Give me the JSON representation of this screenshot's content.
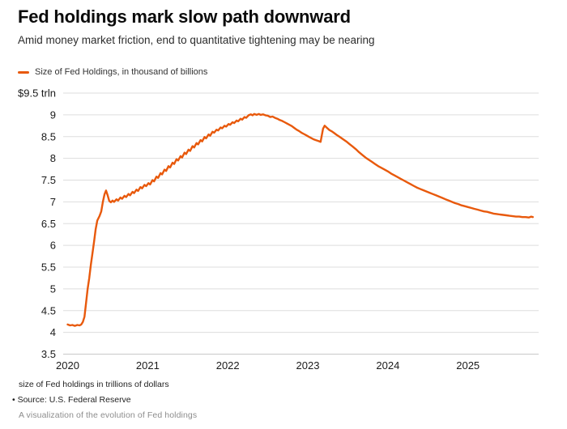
{
  "header": {
    "title": "Fed holdings mark slow path downward",
    "subtitle": "Amid money market friction, end to quantitative tightening may be nearing"
  },
  "legend": {
    "label": "Size of Fed Holdings, in thousand of billions",
    "color": "#e8590c"
  },
  "footer": {
    "note": "size of Fed holdings in trillions of dollars",
    "source": "• Source: U.S. Federal Reserve",
    "caption": "A visualization of the evolution of Fed holdings"
  },
  "colors": {
    "line": "#e8590c",
    "grid": "#dddddd",
    "grid_bottom": "#c9c9c9",
    "axis_text": "#1a1a1a"
  },
  "chart_data": {
    "type": "line",
    "title": "Fed holdings mark slow path downward",
    "subtitle": "Amid money market friction, end to quantitative tightening may be nearing",
    "xlabel": "",
    "ylabel": "$ trillions",
    "x_unit": "years since 2020-01-01",
    "xlim": [
      0,
      5.88
    ],
    "ylim": [
      3.5,
      9.5
    ],
    "grid": "horizontal",
    "legend_position": "top-left",
    "y_ticks": [
      {
        "v": 9.5,
        "label": "$9.5 trln"
      },
      {
        "v": 9.0,
        "label": "9"
      },
      {
        "v": 8.5,
        "label": "8.5"
      },
      {
        "v": 8.0,
        "label": "8"
      },
      {
        "v": 7.5,
        "label": "7.5"
      },
      {
        "v": 7.0,
        "label": "7"
      },
      {
        "v": 6.5,
        "label": "6.5"
      },
      {
        "v": 6.0,
        "label": "6"
      },
      {
        "v": 5.5,
        "label": "5.5"
      },
      {
        "v": 5.0,
        "label": "5"
      },
      {
        "v": 4.5,
        "label": "4.5"
      },
      {
        "v": 4.0,
        "label": "4"
      },
      {
        "v": 3.5,
        "label": "3.5"
      }
    ],
    "x_ticks": [
      {
        "t": 0,
        "label": "2020"
      },
      {
        "t": 1,
        "label": "2021"
      },
      {
        "t": 2,
        "label": "2022"
      },
      {
        "t": 3,
        "label": "2023"
      },
      {
        "t": 4,
        "label": "2024"
      },
      {
        "t": 5,
        "label": "2025"
      }
    ],
    "series": [
      {
        "name": "Size of Fed Holdings, in thousand of billions",
        "color": "#e8590c",
        "points": [
          [
            0.0,
            4.18
          ],
          [
            0.03,
            4.16
          ],
          [
            0.06,
            4.17
          ],
          [
            0.09,
            4.15
          ],
          [
            0.12,
            4.17
          ],
          [
            0.15,
            4.16
          ],
          [
            0.17,
            4.18
          ],
          [
            0.19,
            4.24
          ],
          [
            0.21,
            4.36
          ],
          [
            0.23,
            4.67
          ],
          [
            0.25,
            5.0
          ],
          [
            0.27,
            5.25
          ],
          [
            0.29,
            5.56
          ],
          [
            0.31,
            5.81
          ],
          [
            0.33,
            6.08
          ],
          [
            0.35,
            6.37
          ],
          [
            0.37,
            6.57
          ],
          [
            0.4,
            6.68
          ],
          [
            0.42,
            6.78
          ],
          [
            0.44,
            7.0
          ],
          [
            0.46,
            7.17
          ],
          [
            0.48,
            7.26
          ],
          [
            0.5,
            7.15
          ],
          [
            0.52,
            7.02
          ],
          [
            0.54,
            6.99
          ],
          [
            0.56,
            7.03
          ],
          [
            0.58,
            7.0
          ],
          [
            0.61,
            7.06
          ],
          [
            0.63,
            7.03
          ],
          [
            0.66,
            7.1
          ],
          [
            0.68,
            7.07
          ],
          [
            0.71,
            7.14
          ],
          [
            0.73,
            7.11
          ],
          [
            0.76,
            7.18
          ],
          [
            0.78,
            7.15
          ],
          [
            0.81,
            7.23
          ],
          [
            0.83,
            7.2
          ],
          [
            0.86,
            7.28
          ],
          [
            0.88,
            7.25
          ],
          [
            0.91,
            7.34
          ],
          [
            0.93,
            7.31
          ],
          [
            0.96,
            7.39
          ],
          [
            0.98,
            7.36
          ],
          [
            1.01,
            7.43
          ],
          [
            1.03,
            7.4
          ],
          [
            1.06,
            7.5
          ],
          [
            1.08,
            7.47
          ],
          [
            1.11,
            7.58
          ],
          [
            1.13,
            7.55
          ],
          [
            1.16,
            7.66
          ],
          [
            1.18,
            7.63
          ],
          [
            1.21,
            7.74
          ],
          [
            1.23,
            7.71
          ],
          [
            1.26,
            7.82
          ],
          [
            1.28,
            7.79
          ],
          [
            1.31,
            7.9
          ],
          [
            1.33,
            7.87
          ],
          [
            1.36,
            7.98
          ],
          [
            1.38,
            7.95
          ],
          [
            1.41,
            8.05
          ],
          [
            1.43,
            8.02
          ],
          [
            1.46,
            8.13
          ],
          [
            1.48,
            8.1
          ],
          [
            1.51,
            8.2
          ],
          [
            1.53,
            8.17
          ],
          [
            1.56,
            8.28
          ],
          [
            1.58,
            8.25
          ],
          [
            1.61,
            8.35
          ],
          [
            1.63,
            8.32
          ],
          [
            1.66,
            8.42
          ],
          [
            1.68,
            8.39
          ],
          [
            1.71,
            8.49
          ],
          [
            1.73,
            8.46
          ],
          [
            1.76,
            8.55
          ],
          [
            1.78,
            8.52
          ],
          [
            1.81,
            8.61
          ],
          [
            1.83,
            8.59
          ],
          [
            1.86,
            8.66
          ],
          [
            1.88,
            8.64
          ],
          [
            1.91,
            8.71
          ],
          [
            1.93,
            8.69
          ],
          [
            1.96,
            8.75
          ],
          [
            1.98,
            8.73
          ],
          [
            2.01,
            8.79
          ],
          [
            2.03,
            8.77
          ],
          [
            2.06,
            8.83
          ],
          [
            2.08,
            8.81
          ],
          [
            2.11,
            8.87
          ],
          [
            2.13,
            8.85
          ],
          [
            2.16,
            8.91
          ],
          [
            2.18,
            8.89
          ],
          [
            2.21,
            8.95
          ],
          [
            2.23,
            8.93
          ],
          [
            2.26,
            8.99
          ],
          [
            2.29,
            9.01
          ],
          [
            2.31,
            8.99
          ],
          [
            2.33,
            9.02
          ],
          [
            2.36,
            9.0
          ],
          [
            2.39,
            9.02
          ],
          [
            2.41,
            9.0
          ],
          [
            2.44,
            9.01
          ],
          [
            2.47,
            8.99
          ],
          [
            2.5,
            8.98
          ],
          [
            2.53,
            8.95
          ],
          [
            2.56,
            8.96
          ],
          [
            2.59,
            8.93
          ],
          [
            2.62,
            8.91
          ],
          [
            2.65,
            8.88
          ],
          [
            2.68,
            8.86
          ],
          [
            2.71,
            8.83
          ],
          [
            2.74,
            8.8
          ],
          [
            2.77,
            8.77
          ],
          [
            2.8,
            8.74
          ],
          [
            2.83,
            8.7
          ],
          [
            2.86,
            8.66
          ],
          [
            2.89,
            8.63
          ],
          [
            2.92,
            8.59
          ],
          [
            2.95,
            8.56
          ],
          [
            2.98,
            8.53
          ],
          [
            3.01,
            8.5
          ],
          [
            3.04,
            8.47
          ],
          [
            3.07,
            8.44
          ],
          [
            3.1,
            8.42
          ],
          [
            3.13,
            8.4
          ],
          [
            3.16,
            8.38
          ],
          [
            3.19,
            8.68
          ],
          [
            3.21,
            8.75
          ],
          [
            3.24,
            8.7
          ],
          [
            3.27,
            8.65
          ],
          [
            3.3,
            8.62
          ],
          [
            3.33,
            8.58
          ],
          [
            3.36,
            8.54
          ],
          [
            3.4,
            8.49
          ],
          [
            3.44,
            8.44
          ],
          [
            3.48,
            8.39
          ],
          [
            3.52,
            8.33
          ],
          [
            3.56,
            8.27
          ],
          [
            3.6,
            8.21
          ],
          [
            3.64,
            8.14
          ],
          [
            3.68,
            8.08
          ],
          [
            3.72,
            8.02
          ],
          [
            3.76,
            7.97
          ],
          [
            3.8,
            7.92
          ],
          [
            3.84,
            7.87
          ],
          [
            3.88,
            7.82
          ],
          [
            3.92,
            7.78
          ],
          [
            3.96,
            7.74
          ],
          [
            4.0,
            7.7
          ],
          [
            4.04,
            7.65
          ],
          [
            4.08,
            7.61
          ],
          [
            4.12,
            7.57
          ],
          [
            4.16,
            7.53
          ],
          [
            4.2,
            7.49
          ],
          [
            4.24,
            7.45
          ],
          [
            4.28,
            7.41
          ],
          [
            4.32,
            7.37
          ],
          [
            4.36,
            7.33
          ],
          [
            4.4,
            7.3
          ],
          [
            4.44,
            7.27
          ],
          [
            4.48,
            7.24
          ],
          [
            4.52,
            7.21
          ],
          [
            4.56,
            7.18
          ],
          [
            4.6,
            7.15
          ],
          [
            4.64,
            7.12
          ],
          [
            4.68,
            7.09
          ],
          [
            4.72,
            7.06
          ],
          [
            4.76,
            7.03
          ],
          [
            4.8,
            7.0
          ],
          [
            4.84,
            6.97
          ],
          [
            4.88,
            6.95
          ],
          [
            4.92,
            6.92
          ],
          [
            4.96,
            6.9
          ],
          [
            5.0,
            6.88
          ],
          [
            5.04,
            6.86
          ],
          [
            5.08,
            6.84
          ],
          [
            5.12,
            6.82
          ],
          [
            5.16,
            6.8
          ],
          [
            5.2,
            6.78
          ],
          [
            5.24,
            6.77
          ],
          [
            5.28,
            6.75
          ],
          [
            5.32,
            6.73
          ],
          [
            5.36,
            6.72
          ],
          [
            5.4,
            6.71
          ],
          [
            5.44,
            6.7
          ],
          [
            5.48,
            6.69
          ],
          [
            5.52,
            6.68
          ],
          [
            5.56,
            6.67
          ],
          [
            5.6,
            6.66
          ],
          [
            5.64,
            6.66
          ],
          [
            5.68,
            6.65
          ],
          [
            5.72,
            6.65
          ],
          [
            5.76,
            6.64
          ],
          [
            5.79,
            6.66
          ],
          [
            5.81,
            6.65
          ]
        ]
      }
    ]
  }
}
